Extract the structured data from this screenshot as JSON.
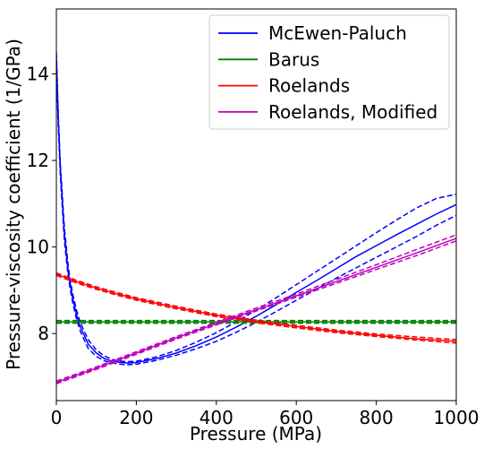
{
  "chart_data": {
    "type": "line",
    "title": "",
    "xlabel": "Pressure (MPa)",
    "ylabel": "Pressure-viscosity coefficient (1/GPa)",
    "xlim": [
      0,
      1000
    ],
    "ylim": [
      6.45,
      15.5
    ],
    "xticks": [
      0,
      200,
      400,
      600,
      800,
      1000
    ],
    "yticks": [
      8,
      10,
      12,
      14
    ],
    "grid": false,
    "legend_position": "top-right",
    "series": [
      {
        "name": "McEwen-Paluch",
        "color": "#0000ff",
        "x": [
          0,
          5,
          10,
          20,
          30,
          40,
          50,
          60,
          80,
          100,
          120,
          140,
          160,
          180,
          200,
          250,
          300,
          350,
          400,
          450,
          500,
          550,
          600,
          650,
          700,
          750,
          800,
          850,
          900,
          950,
          1000
        ],
        "y": [
          14.4,
          12.9,
          11.8,
          10.3,
          9.4,
          8.85,
          8.45,
          8.15,
          7.75,
          7.55,
          7.42,
          7.36,
          7.33,
          7.32,
          7.33,
          7.42,
          7.55,
          7.72,
          7.92,
          8.15,
          8.4,
          8.67,
          8.95,
          9.22,
          9.5,
          9.78,
          10.03,
          10.28,
          10.52,
          10.76,
          10.98
        ],
        "upper": [
          14.5,
          13.0,
          11.9,
          10.45,
          9.52,
          8.95,
          8.55,
          8.25,
          7.85,
          7.62,
          7.48,
          7.4,
          7.36,
          7.35,
          7.36,
          7.46,
          7.61,
          7.8,
          8.02,
          8.27,
          8.54,
          8.83,
          9.13,
          9.43,
          9.73,
          10.03,
          10.33,
          10.62,
          10.9,
          11.12,
          11.22
        ],
        "lower": [
          14.2,
          12.75,
          11.65,
          10.15,
          9.28,
          8.75,
          8.35,
          8.05,
          7.65,
          7.47,
          7.37,
          7.32,
          7.29,
          7.28,
          7.29,
          7.38,
          7.5,
          7.65,
          7.82,
          8.03,
          8.26,
          8.51,
          8.77,
          9.02,
          9.28,
          9.52,
          9.76,
          10.0,
          10.24,
          10.5,
          10.73
        ]
      },
      {
        "name": "Barus",
        "color": "#008000",
        "x": [
          0,
          1000
        ],
        "y": [
          8.27,
          8.27
        ],
        "upper": [
          8.3,
          8.3
        ],
        "lower": [
          8.24,
          8.24
        ]
      },
      {
        "name": "Roelands",
        "color": "#ff0000",
        "x": [
          0,
          50,
          100,
          150,
          200,
          300,
          400,
          500,
          600,
          700,
          800,
          900,
          1000
        ],
        "y": [
          9.37,
          9.2,
          9.05,
          8.92,
          8.8,
          8.6,
          8.42,
          8.28,
          8.16,
          8.05,
          7.96,
          7.88,
          7.82
        ],
        "upper": [
          9.4,
          9.23,
          9.08,
          8.95,
          8.83,
          8.63,
          8.45,
          8.31,
          8.19,
          8.08,
          7.99,
          7.92,
          7.86
        ],
        "lower": [
          9.34,
          9.17,
          9.02,
          8.89,
          8.77,
          8.57,
          8.39,
          8.25,
          8.13,
          8.02,
          7.93,
          7.85,
          7.78
        ]
      },
      {
        "name": "Roelands, Modified",
        "color": "#bf00bf",
        "x": [
          0,
          100,
          200,
          300,
          400,
          500,
          600,
          700,
          800,
          900,
          1000
        ],
        "y": [
          6.87,
          7.2,
          7.55,
          7.9,
          8.23,
          8.55,
          8.87,
          9.2,
          9.53,
          9.86,
          10.2
        ],
        "upper": [
          6.9,
          7.23,
          7.58,
          7.93,
          8.26,
          8.59,
          8.91,
          9.25,
          9.59,
          9.94,
          10.28
        ],
        "lower": [
          6.84,
          7.17,
          7.52,
          7.87,
          8.2,
          8.52,
          8.84,
          9.16,
          9.48,
          9.8,
          10.14
        ]
      }
    ]
  }
}
